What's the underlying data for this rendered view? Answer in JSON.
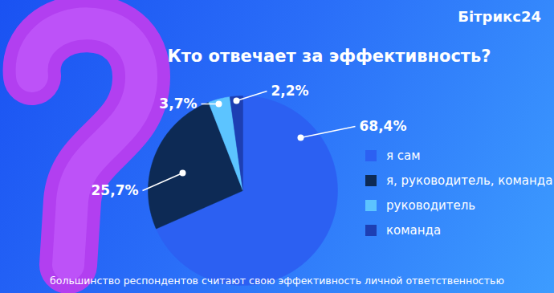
{
  "brand": "Бітрикс24",
  "chart_data": {
    "type": "pie",
    "title": "Кто отвечает за эффективность?",
    "categories": [
      "я сам",
      "я, руководитель, команда",
      "руководитель",
      "команда"
    ],
    "values": [
      68.4,
      25.7,
      3.7,
      2.2
    ],
    "value_labels": [
      "68,4%",
      "25,7%",
      "3,7%",
      "2,2%"
    ],
    "colors": [
      "#2c60f2",
      "#0d2a55",
      "#5cc4ff",
      "#1d3fb3"
    ],
    "data_labels": true,
    "legend": "right",
    "annotations": [
      "большинство респондентов считают свою эффективность личной ответственностью"
    ]
  }
}
